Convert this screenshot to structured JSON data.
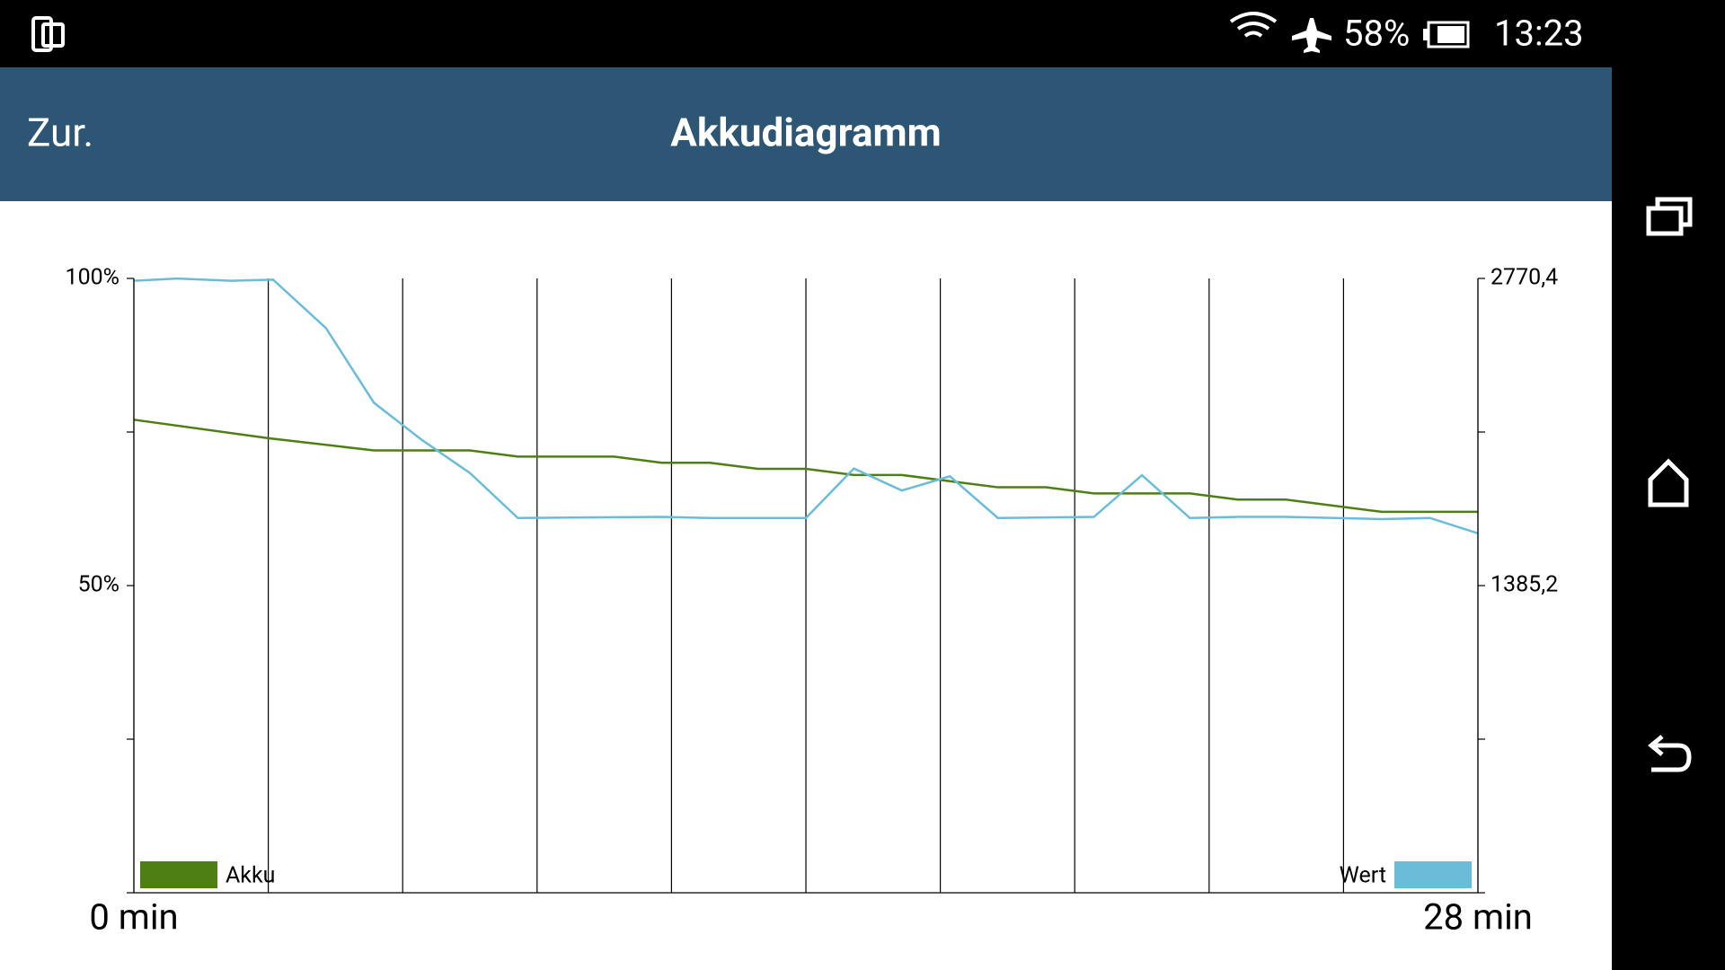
{
  "status_bar": {
    "battery": "58%",
    "time": "13:23"
  },
  "app_bar": {
    "back": "Zur.",
    "title": "Akkudiagramm"
  },
  "chart_data": {
    "type": "line",
    "xlim": [
      0,
      28
    ],
    "xticks": [
      {
        "value": 0,
        "label": "0 min"
      },
      {
        "value": 28,
        "label": "28 min"
      }
    ],
    "xgrid_divisions": 10,
    "ylim": [
      0,
      100
    ],
    "yticks": [
      {
        "value": 50,
        "label": "50%"
      },
      {
        "value": 100,
        "label": "100%"
      }
    ],
    "yminor_ticks": [
      0,
      25,
      75
    ],
    "y2lim": [
      0,
      2770.4
    ],
    "y2ticks": [
      {
        "value": 1385.2,
        "label": "1385,2"
      },
      {
        "value": 2770.4,
        "label": "2770,4"
      }
    ],
    "series": [
      {
        "name": "Akku",
        "color": "#4e7f14",
        "legend_corner": "bottom-left",
        "x": [
          0,
          2.8,
          5,
          7,
          8,
          10,
          11,
          12,
          13,
          14,
          15,
          16,
          17,
          18,
          19,
          20,
          22,
          23,
          24,
          26,
          28
        ],
        "values": [
          77,
          74,
          72,
          72,
          71,
          71,
          70,
          70,
          69,
          69,
          68,
          68,
          67,
          66,
          66,
          65,
          65,
          64,
          64,
          62,
          62
        ]
      },
      {
        "name": "Wert",
        "color": "#6bbcd9",
        "axis": "y2",
        "legend_corner": "bottom-right",
        "x": [
          0,
          0.9,
          2,
          2.9,
          4,
          5,
          6,
          7,
          8,
          11,
          12,
          14,
          15,
          16,
          17,
          18,
          20,
          21,
          22,
          23,
          24,
          26,
          27,
          28
        ],
        "values": [
          2760,
          2770,
          2760,
          2765,
          2547,
          2210,
          2042,
          1893,
          1690,
          1695,
          1690,
          1690,
          1913,
          1814,
          1878,
          1690,
          1695,
          1883,
          1690,
          1695,
          1695,
          1685,
          1690,
          1621
        ]
      }
    ]
  }
}
